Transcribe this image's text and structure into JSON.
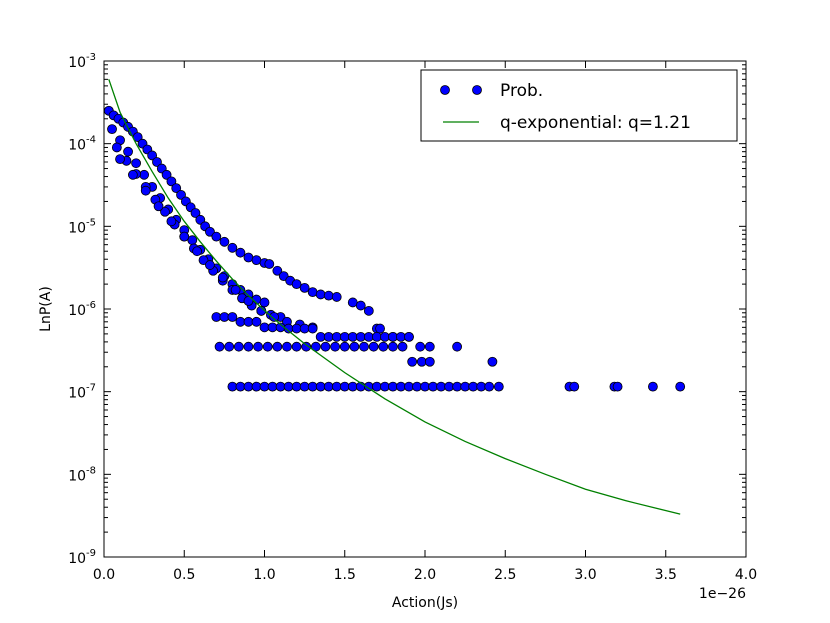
{
  "chart_data": {
    "type": "scatter",
    "title": "",
    "xlabel": "Action(Js)",
    "ylabel": "LnP(A)",
    "x_offset_label": "1e−26",
    "x_scale": "linear",
    "y_scale": "log",
    "xlim": [
      0.0,
      4.0
    ],
    "ylim": [
      1e-09,
      0.001
    ],
    "x_ticks": [
      0.0,
      0.5,
      1.0,
      1.5,
      2.0,
      2.5,
      3.0,
      3.5,
      4.0
    ],
    "x_tick_labels": [
      "0.0",
      "0.5",
      "1.0",
      "1.5",
      "2.0",
      "2.5",
      "3.0",
      "3.5",
      "4.0"
    ],
    "y_ticks": [
      1e-09,
      1e-08,
      1e-07,
      1e-06,
      1e-05,
      0.0001,
      0.001
    ],
    "y_tick_base": "10",
    "y_tick_exponents": [
      "-9",
      "-8",
      "-7",
      "-6",
      "-5",
      "-4",
      "-3"
    ],
    "grid": false,
    "legend_position": "top-right",
    "colors": {
      "points": "#0000ff",
      "point_edge": "#000000",
      "line": "#008000"
    },
    "series": [
      {
        "name": "Prob.",
        "kind": "points",
        "x": [
          0.03,
          0.06,
          0.09,
          0.12,
          0.15,
          0.18,
          0.21,
          0.24,
          0.27,
          0.3,
          0.33,
          0.36,
          0.39,
          0.42,
          0.45,
          0.48,
          0.51,
          0.54,
          0.57,
          0.6,
          0.63,
          0.66,
          0.7,
          0.75,
          0.8,
          0.85,
          0.9,
          0.95,
          1.0,
          1.03,
          1.08,
          1.12,
          1.16,
          1.2,
          1.25,
          1.3,
          1.35,
          1.4,
          1.45,
          1.55,
          1.6,
          1.65,
          1.7,
          1.72,
          1.8,
          1.9,
          1.97,
          2.03,
          2.2,
          2.42,
          0.05,
          0.1,
          0.15,
          0.2,
          0.25,
          0.3,
          0.35,
          0.4,
          0.45,
          0.5,
          0.55,
          0.6,
          0.65,
          0.7,
          0.75,
          0.8,
          0.85,
          0.9,
          0.95,
          1.0,
          0.08,
          0.14,
          0.2,
          0.26,
          0.32,
          0.38,
          0.44,
          0.5,
          0.56,
          0.62,
          0.68,
          0.74,
          0.8,
          0.86,
          0.92,
          0.98,
          1.04,
          1.1,
          0.1,
          0.18,
          0.26,
          0.34,
          0.42,
          0.5,
          0.58,
          0.66,
          0.74,
          0.82,
          0.9,
          0.98,
          1.06,
          1.14,
          1.22,
          1.3,
          0.7,
          0.75,
          0.8,
          0.85,
          0.9,
          0.95,
          1.0,
          1.05,
          1.1,
          1.15,
          1.2,
          1.25,
          1.3,
          1.35,
          1.4,
          1.45,
          1.5,
          1.55,
          1.6,
          1.65,
          1.7,
          1.75,
          1.8,
          1.85,
          1.9,
          0.72,
          0.78,
          0.84,
          0.9,
          0.96,
          1.02,
          1.08,
          1.14,
          1.2,
          1.26,
          1.32,
          1.38,
          1.44,
          1.5,
          1.56,
          1.62,
          1.68,
          1.74,
          1.8,
          1.86,
          1.92,
          1.98,
          2.03,
          0.8,
          0.85,
          0.9,
          0.95,
          1.0,
          1.05,
          1.1,
          1.15,
          1.2,
          1.25,
          1.3,
          1.35,
          1.4,
          1.45,
          1.5,
          1.55,
          1.6,
          1.65,
          1.7,
          1.75,
          1.8,
          1.85,
          1.9,
          1.95,
          2.0,
          2.05,
          2.1,
          2.15,
          2.2,
          2.25,
          2.3,
          2.35,
          2.4,
          2.46,
          2.9,
          2.93,
          3.18,
          3.2,
          3.42,
          3.59
        ],
        "y": [
          0.00025,
          0.00022,
          0.0002,
          0.00018,
          0.00016,
          0.00014,
          0.00012,
          0.0001,
          8.5e-05,
          7.2e-05,
          6e-05,
          5e-05,
          4.2e-05,
          3.5e-05,
          2.9e-05,
          2.4e-05,
          2e-05,
          1.7e-05,
          1.45e-05,
          1.2e-05,
          1e-05,
          8.6e-06,
          7.5e-06,
          6.5e-06,
          5.5e-06,
          4.8e-06,
          4.2e-06,
          3.9e-06,
          3.6e-06,
          3.5e-06,
          2.9e-06,
          2.5e-06,
          2.2e-06,
          2e-06,
          1.8e-06,
          1.6e-06,
          1.5e-06,
          1.45e-06,
          1.4e-06,
          1.2e-06,
          1.1e-06,
          9.5e-07,
          5.8e-07,
          5.8e-07,
          4.6e-07,
          4.6e-07,
          3.5e-07,
          3.5e-07,
          3.5e-07,
          2.3e-07,
          0.00015,
          0.00011,
          8e-05,
          5.8e-05,
          4.2e-05,
          3e-05,
          2.2e-05,
          1.6e-05,
          1.2e-05,
          9e-06,
          6.8e-06,
          5.2e-06,
          4e-06,
          3.1e-06,
          2.5e-06,
          2e-06,
          1.7e-06,
          1.5e-06,
          1.3e-06,
          1.2e-06,
          9e-05,
          6.2e-05,
          4.3e-05,
          3e-05,
          2.1e-05,
          1.5e-05,
          1.05e-05,
          7.5e-06,
          5.4e-06,
          3.9e-06,
          2.9e-06,
          2.2e-06,
          1.7e-06,
          1.35e-06,
          1.1e-06,
          9.5e-07,
          8.5e-07,
          8e-07,
          6.5e-05,
          4.2e-05,
          2.7e-05,
          1.75e-05,
          1.15e-05,
          7.5e-06,
          5e-06,
          3.4e-06,
          2.4e-06,
          1.7e-06,
          1.25e-06,
          9.5e-07,
          8e-07,
          7e-07,
          6.5e-07,
          6e-07,
          8e-07,
          8e-07,
          8e-07,
          7e-07,
          7e-07,
          7e-07,
          6e-07,
          6e-07,
          6e-07,
          5.8e-07,
          5.8e-07,
          5.8e-07,
          5.8e-07,
          4.6e-07,
          4.6e-07,
          4.6e-07,
          4.6e-07,
          4.6e-07,
          4.6e-07,
          4.6e-07,
          4.6e-07,
          4.6e-07,
          4.6e-07,
          4.6e-07,
          4.6e-07,
          3.5e-07,
          3.5e-07,
          3.5e-07,
          3.5e-07,
          3.5e-07,
          3.5e-07,
          3.5e-07,
          3.5e-07,
          3.5e-07,
          3.5e-07,
          3.5e-07,
          3.5e-07,
          3.5e-07,
          3.5e-07,
          3.5e-07,
          3.5e-07,
          3.5e-07,
          3.5e-07,
          3.5e-07,
          3.5e-07,
          2.3e-07,
          2.3e-07,
          2.3e-07,
          1.15e-07,
          1.15e-07,
          1.15e-07,
          1.15e-07,
          1.15e-07,
          1.15e-07,
          1.15e-07,
          1.15e-07,
          1.15e-07,
          1.15e-07,
          1.15e-07,
          1.15e-07,
          1.15e-07,
          1.15e-07,
          1.15e-07,
          1.15e-07,
          1.15e-07,
          1.15e-07,
          1.15e-07,
          1.15e-07,
          1.15e-07,
          1.15e-07,
          1.15e-07,
          1.15e-07,
          1.15e-07,
          1.15e-07,
          1.15e-07,
          1.15e-07,
          1.15e-07,
          1.15e-07,
          1.15e-07,
          1.15e-07,
          1.15e-07,
          1.15e-07,
          1.15e-07,
          1.15e-07,
          1.15e-07,
          1.15e-07,
          1.15e-07,
          1.15e-07
        ]
      },
      {
        "name": "q-exponential: q=1.21",
        "kind": "line",
        "x": [
          0.03,
          0.1,
          0.2,
          0.3,
          0.4,
          0.5,
          0.6,
          0.7,
          0.8,
          0.9,
          1.0,
          1.1,
          1.25,
          1.5,
          1.75,
          2.0,
          2.25,
          2.5,
          2.75,
          3.0,
          3.25,
          3.59
        ],
        "y": [
          0.0006,
          0.00024,
          0.0001,
          4.6e-05,
          2.2e-05,
          1.15e-05,
          6.5e-06,
          3.8e-06,
          2.3e-06,
          1.45e-06,
          9.6e-07,
          6.5e-07,
          3.8e-07,
          1.7e-07,
          8.2e-08,
          4.3e-08,
          2.5e-08,
          1.55e-08,
          1e-08,
          6.6e-09,
          4.8e-09,
          3.3e-09
        ]
      }
    ]
  }
}
